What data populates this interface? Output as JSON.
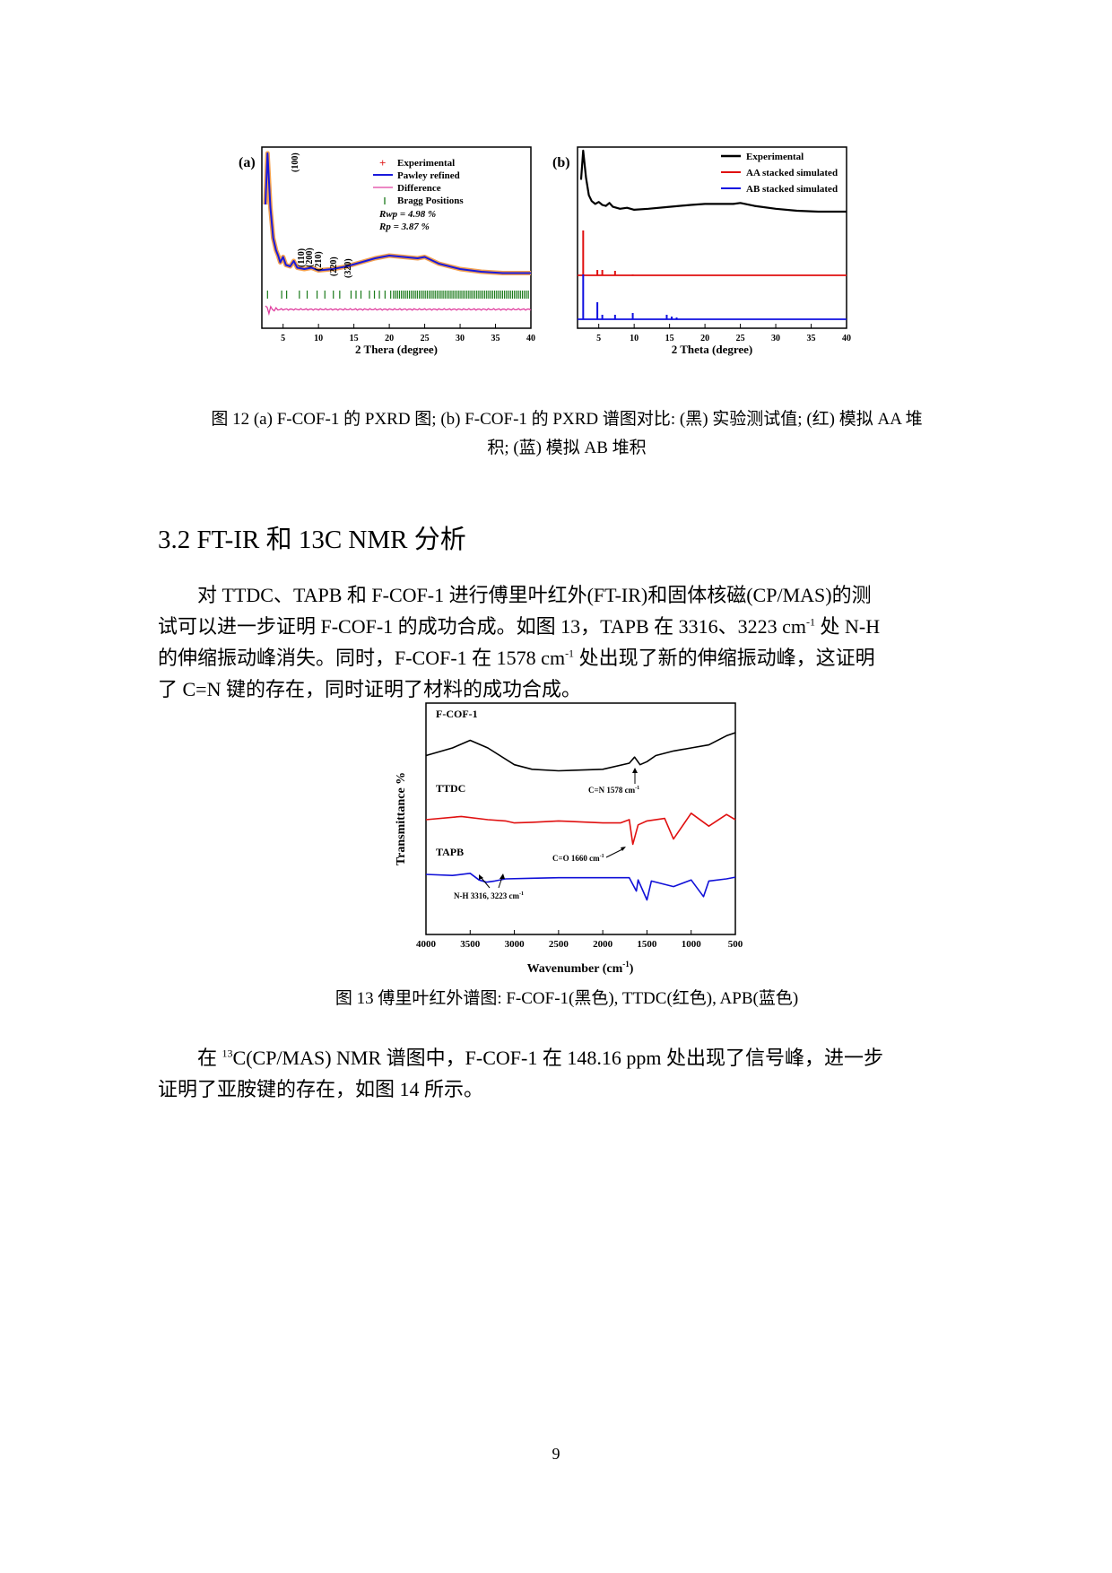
{
  "figure12": {
    "caption_line1": "图 12 (a) F-COF-1 的 PXRD 图; (b) F-COF-1 的 PXRD 谱图对比: (黑) 实验测试值; (红) 模拟 AA 堆",
    "caption_line2": "积; (蓝) 模拟 AB 堆积",
    "panel_a": {
      "label": "(a)",
      "xlabel": "2 Thera (degree)",
      "xticks": [
        "5",
        "10",
        "15",
        "20",
        "25",
        "30",
        "35",
        "40"
      ],
      "legend": [
        "Experimental",
        "Pawley refined",
        "Difference",
        "Bragg Positions"
      ],
      "rwp": "Rwp = 4.98 %",
      "rp": "Rp = 3.87 %",
      "peak_labels": [
        "(100)",
        "(110)",
        "(200)",
        "(210)",
        "(220)",
        "(320)"
      ]
    },
    "panel_b": {
      "label": "(b)",
      "xlabel": "2 Theta (degree)",
      "xticks": [
        "5",
        "10",
        "15",
        "20",
        "25",
        "30",
        "35",
        "40"
      ],
      "legend": [
        "Experimental",
        "AA stacked simulated",
        "AB stacked simulated"
      ]
    },
    "colors": {
      "experimental": "#000000",
      "pawley": "#1a1adc",
      "difference": "#e040a0",
      "bragg": "#1a7a1a",
      "aa": "#e01010",
      "ab": "#1010e0",
      "exp_marker": "#e02020"
    }
  },
  "section": {
    "title": "3.2 FT-IR 和 13C NMR 分析"
  },
  "paragraph1": {
    "line1": "对 TTDC、TAPB 和 F-COF-1 进行傅里叶红外(FT-IR)和固体核磁(CP/MAS)的测",
    "line2a": "试可以进一步证明 F-COF-1 的成功合成。如图 13，TAPB 在 3316、3223 cm",
    "line2sup": "-1",
    "line2b": " 处 N-H",
    "line3a": "的伸缩振动峰消失。同时，F-COF-1 在 1578 cm",
    "line3sup": "-1",
    "line3b": " 处出现了新的伸缩振动峰，这证明",
    "line4": "了 C=N 键的存在，同时证明了材料的成功合成。"
  },
  "figure13": {
    "caption": "图 13 傅里叶红外谱图: F-COF-1(黑色), TTDC(红色), APB(蓝色)",
    "ylabel": "Transmittance %",
    "xlabel": "Wavenumber (cm",
    "xlabel_sup": "-1",
    "xlabel_end": ")",
    "xticks": [
      "4000",
      "3500",
      "3000",
      "2500",
      "2000",
      "1500",
      "1000",
      "500"
    ],
    "trace_labels": [
      "F-COF-1",
      "TTDC",
      "TAPB"
    ],
    "annotations": {
      "cn": "C=N 1578 cm",
      "co": "C=O 1660 cm",
      "nh": "N-H 3316, 3223 cm",
      "unit_sup": "-1"
    }
  },
  "paragraph2": {
    "line1_pre": "在 ",
    "line1_sup": "13",
    "line1_post": "C(CP/MAS) NMR 谱图中，F-COF-1 在 148.16 ppm 处出现了信号峰，进一步",
    "line2": "证明了亚胺键的存在，如图 14 所示。"
  },
  "page_number": "9",
  "chart_data": [
    {
      "type": "line",
      "title": "(a)",
      "xlabel": "2 Thera (degree)",
      "ylabel": "",
      "xlim": [
        2,
        40
      ],
      "series": [
        {
          "name": "Experimental",
          "x": [
            2.5,
            2.8,
            3.2,
            3.6,
            4.0,
            4.3,
            4.6,
            5.0,
            5.4,
            6.0,
            6.5,
            7.0,
            8.0,
            9.0,
            10.0,
            12.0,
            14.0,
            16.0,
            18.0,
            20.0,
            22.0,
            24.0,
            25.0,
            27.0,
            30.0,
            33.0,
            36.0,
            40.0
          ],
          "y": [
            60,
            98,
            58,
            35,
            26,
            22,
            17,
            21,
            15,
            14,
            18,
            13,
            12,
            13,
            11,
            12,
            14,
            17,
            20,
            22,
            21,
            20,
            21,
            16,
            12,
            10,
            9,
            9
          ]
        },
        {
          "name": "Pawley refined",
          "x": [
            2.5,
            2.8,
            3.2,
            3.6,
            4.0,
            4.3,
            4.6,
            5.0,
            5.4,
            6.0,
            6.5,
            7.0,
            8.0,
            9.0,
            10.0,
            12.0,
            14.0,
            16.0,
            18.0,
            20.0,
            22.0,
            24.0,
            25.0,
            27.0,
            30.0,
            33.0,
            36.0,
            40.0
          ],
          "y": [
            60,
            98,
            58,
            35,
            26,
            22,
            17,
            21,
            15,
            14,
            18,
            13,
            12,
            13,
            11,
            12,
            14,
            17,
            20,
            22,
            21,
            20,
            21,
            16,
            12,
            10,
            9,
            9
          ]
        },
        {
          "name": "Difference",
          "x": [
            2.5,
            3.0,
            3.5,
            4.0,
            5.0,
            6.0,
            8.0,
            10.0,
            20.0,
            30.0,
            40.0
          ],
          "y": [
            0,
            0,
            0,
            0,
            0,
            0,
            0,
            0,
            0,
            0,
            0
          ]
        }
      ]
    },
    {
      "type": "line",
      "title": "(b)",
      "xlabel": "2 Theta (degree)",
      "ylabel": "",
      "xlim": [
        2,
        40
      ],
      "series": [
        {
          "name": "Experimental",
          "x": [
            2.5,
            2.8,
            3.2,
            3.6,
            4.0,
            4.5,
            5.0,
            5.5,
            6.0,
            6.5,
            7.0,
            8.0,
            9.0,
            10.0,
            12.0,
            15.0,
            18.0,
            20.0,
            22.0,
            24.0,
            25.0,
            27.0,
            30.0,
            33.0,
            36.0,
            40.0
          ],
          "y": [
            70,
            100,
            72,
            54,
            48,
            45,
            47,
            44,
            43,
            46,
            42,
            40,
            41,
            39,
            40,
            42,
            44,
            45,
            45,
            45,
            46,
            43,
            40,
            38,
            37,
            37
          ]
        },
        {
          "name": "AA stacked simulated",
          "x": [
            2.8,
            4.8,
            5.5,
            7.3,
            9.8
          ],
          "y": [
            100,
            12,
            12,
            10,
            2
          ]
        },
        {
          "name": "AB stacked simulated",
          "x": [
            2.8,
            4.8,
            5.5,
            7.3,
            9.8,
            14.6,
            15.3,
            16.0
          ],
          "y": [
            100,
            38,
            10,
            10,
            14,
            10,
            6,
            4
          ]
        }
      ]
    },
    {
      "type": "line",
      "title": "",
      "xlabel": "Wavenumber (cm-1)",
      "ylabel": "Transmittance %",
      "xlim": [
        4000,
        500
      ],
      "series": [
        {
          "name": "F-COF-1",
          "x": [
            4000,
            3700,
            3500,
            3300,
            3000,
            2800,
            2500,
            2000,
            1700,
            1640,
            1578,
            1500,
            1400,
            1200,
            1000,
            800,
            600,
            500
          ],
          "y": [
            50,
            40,
            30,
            40,
            62,
            68,
            70,
            68,
            60,
            52,
            62,
            58,
            50,
            44,
            40,
            36,
            24,
            20
          ]
        },
        {
          "name": "TTDC",
          "x": [
            4000,
            3600,
            3300,
            3100,
            3000,
            2800,
            2500,
            2000,
            1800,
            1700,
            1660,
            1600,
            1500,
            1300,
            1200,
            1000,
            800,
            600,
            500
          ],
          "y": [
            50,
            45,
            50,
            52,
            55,
            54,
            52,
            55,
            55,
            50,
            88,
            58,
            52,
            48,
            80,
            40,
            60,
            42,
            50
          ]
        },
        {
          "name": "TAPB",
          "x": [
            4000,
            3700,
            3500,
            3400,
            3316,
            3223,
            3100,
            2800,
            2500,
            2000,
            1700,
            1620,
            1600,
            1500,
            1450,
            1200,
            1000,
            860,
            800,
            600,
            500
          ],
          "y": [
            50,
            52,
            48,
            60,
            64,
            62,
            58,
            57,
            56,
            56,
            56,
            80,
            60,
            96,
            62,
            72,
            60,
            90,
            62,
            58,
            55
          ]
        }
      ]
    }
  ]
}
